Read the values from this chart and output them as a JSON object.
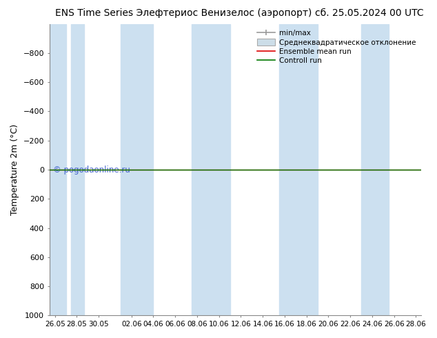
{
  "title": "ENS Time Series Элефтериос Венизелос (аэропорт)",
  "title_right": "сб. 25.05.2024 00 UTC",
  "ylabel": "Temperature 2m (°C)",
  "ylabel_fontsize": 9,
  "title_fontsize": 10,
  "background_color": "#ffffff",
  "plot_bg_color": "#ffffff",
  "ylim_bottom": 1000,
  "ylim_top": -1000,
  "yticks": [
    -800,
    -600,
    -400,
    -200,
    0,
    200,
    400,
    600,
    800,
    1000
  ],
  "x_start": 0,
  "x_end": 34,
  "xtick_labels": [
    "26.05",
    "28.05",
    "30.05",
    "02.06",
    "04.06",
    "06.06",
    "08.06",
    "10.06",
    "12.06",
    "14.06",
    "16.06",
    "18.06",
    "20.06",
    "22.06",
    "24.06",
    "26.06",
    "28.06"
  ],
  "xtick_positions": [
    0.5,
    2.5,
    4.5,
    7.5,
    9.5,
    11.5,
    13.5,
    15.5,
    17.5,
    19.5,
    21.5,
    23.5,
    25.5,
    27.5,
    29.5,
    31.5,
    33.5
  ],
  "shade_bands": [
    [
      0,
      1.5
    ],
    [
      2,
      3.2
    ],
    [
      6.5,
      9.5
    ],
    [
      13.0,
      16.5
    ],
    [
      21.0,
      24.5
    ],
    [
      28.5,
      31.0
    ]
  ],
  "shade_color": "#cce0f0",
  "green_line_y": 0,
  "red_line_y": 0,
  "green_line_color": "#007700",
  "red_line_color": "#dd0000",
  "watermark": "© pogodaonline.ru",
  "watermark_color": "#4466cc",
  "legend_labels": [
    "min/max",
    "Среднеквадратическое отклонение",
    "Ensemble mean run",
    "Controll run"
  ],
  "legend_colors": [
    "#999999",
    "#ccdde8",
    "#dd0000",
    "#007700"
  ]
}
